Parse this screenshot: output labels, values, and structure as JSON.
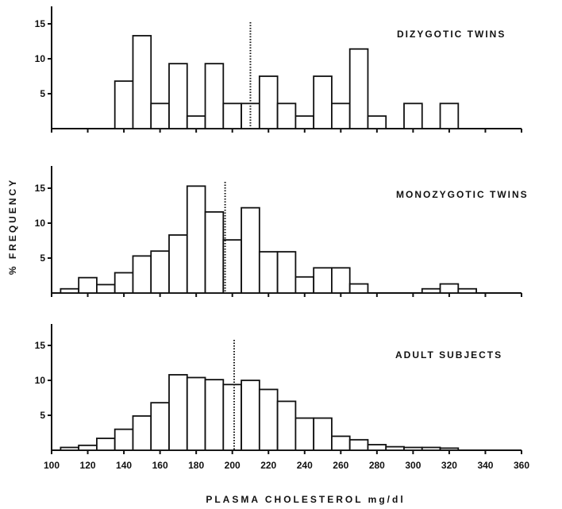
{
  "chart_data": [
    {
      "type": "bar",
      "panel_label": "DIZYGOTIC TWINS",
      "xlabel": "",
      "ylabel": "",
      "bin_width": 10,
      "xlim": [
        100,
        360
      ],
      "ylim": [
        0,
        17
      ],
      "yticks": [
        5,
        10,
        15
      ],
      "mean_line": 210,
      "bars": [
        {
          "x": 140,
          "y": 6.8
        },
        {
          "x": 150,
          "y": 13.3
        },
        {
          "x": 160,
          "y": 3.6
        },
        {
          "x": 170,
          "y": 9.3
        },
        {
          "x": 180,
          "y": 1.8
        },
        {
          "x": 190,
          "y": 9.3
        },
        {
          "x": 200,
          "y": 3.6
        },
        {
          "x": 210,
          "y": 3.6
        },
        {
          "x": 220,
          "y": 7.5
        },
        {
          "x": 230,
          "y": 3.6
        },
        {
          "x": 240,
          "y": 1.8
        },
        {
          "x": 250,
          "y": 7.5
        },
        {
          "x": 260,
          "y": 3.6
        },
        {
          "x": 270,
          "y": 11.4
        },
        {
          "x": 280,
          "y": 1.8
        },
        {
          "x": 300,
          "y": 3.6
        },
        {
          "x": 320,
          "y": 3.6
        }
      ]
    },
    {
      "type": "bar",
      "panel_label": "MONOZYGOTIC TWINS",
      "xlabel": "",
      "ylabel": "% FREQUENCY",
      "bin_width": 10,
      "xlim": [
        100,
        360
      ],
      "ylim": [
        0,
        17
      ],
      "yticks": [
        5,
        10,
        15
      ],
      "mean_line": 196,
      "bars": [
        {
          "x": 110,
          "y": 0.6
        },
        {
          "x": 120,
          "y": 2.2
        },
        {
          "x": 130,
          "y": 1.2
        },
        {
          "x": 140,
          "y": 2.9
        },
        {
          "x": 150,
          "y": 5.3
        },
        {
          "x": 160,
          "y": 6.0
        },
        {
          "x": 170,
          "y": 8.3
        },
        {
          "x": 180,
          "y": 15.3
        },
        {
          "x": 190,
          "y": 11.6
        },
        {
          "x": 200,
          "y": 7.6
        },
        {
          "x": 210,
          "y": 12.2
        },
        {
          "x": 220,
          "y": 5.9
        },
        {
          "x": 230,
          "y": 5.9
        },
        {
          "x": 240,
          "y": 2.3
        },
        {
          "x": 250,
          "y": 3.6
        },
        {
          "x": 260,
          "y": 3.6
        },
        {
          "x": 270,
          "y": 1.3
        },
        {
          "x": 310,
          "y": 0.6
        },
        {
          "x": 320,
          "y": 1.3
        },
        {
          "x": 330,
          "y": 0.6
        }
      ]
    },
    {
      "type": "bar",
      "panel_label": "ADULT SUBJECTS",
      "xlabel": "PLASMA CHOLESTEROL mg/dl",
      "ylabel": "",
      "bin_width": 10,
      "xlim": [
        100,
        360
      ],
      "ylim": [
        0,
        17
      ],
      "yticks": [
        5,
        10,
        15
      ],
      "xticks": [
        100,
        120,
        140,
        160,
        180,
        200,
        220,
        240,
        260,
        280,
        300,
        320,
        340,
        360
      ],
      "mean_line": 201,
      "bars": [
        {
          "x": 110,
          "y": 0.4
        },
        {
          "x": 120,
          "y": 0.7
        },
        {
          "x": 130,
          "y": 1.7
        },
        {
          "x": 140,
          "y": 3.0
        },
        {
          "x": 150,
          "y": 4.9
        },
        {
          "x": 160,
          "y": 6.8
        },
        {
          "x": 170,
          "y": 10.8
        },
        {
          "x": 180,
          "y": 10.4
        },
        {
          "x": 190,
          "y": 10.1
        },
        {
          "x": 200,
          "y": 9.4
        },
        {
          "x": 210,
          "y": 10.0
        },
        {
          "x": 220,
          "y": 8.7
        },
        {
          "x": 230,
          "y": 7.0
        },
        {
          "x": 240,
          "y": 4.6
        },
        {
          "x": 250,
          "y": 4.6
        },
        {
          "x": 260,
          "y": 2.0
        },
        {
          "x": 270,
          "y": 1.5
        },
        {
          "x": 280,
          "y": 0.8
        },
        {
          "x": 290,
          "y": 0.5
        },
        {
          "x": 300,
          "y": 0.4
        },
        {
          "x": 310,
          "y": 0.4
        },
        {
          "x": 320,
          "y": 0.3
        }
      ]
    }
  ]
}
